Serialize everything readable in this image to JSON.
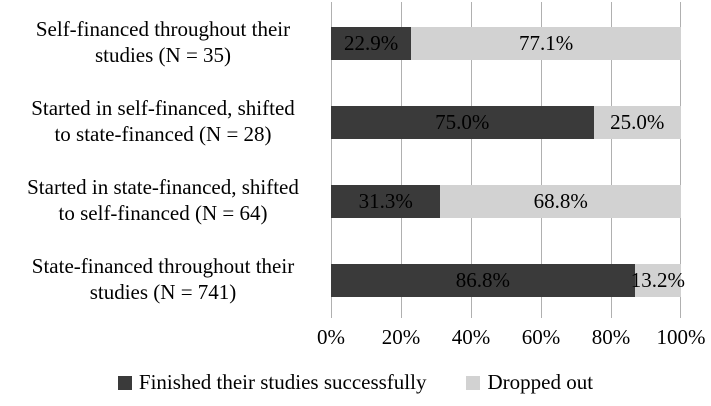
{
  "chart_data": {
    "type": "bar",
    "orientation": "horizontal",
    "stacked": true,
    "title": "",
    "categories": [
      {
        "line1": "Self-financed throughout their",
        "line2": "studies (N = 35)"
      },
      {
        "line1": "Started in self-financed, shifted",
        "line2": "to state-financed (N = 28)"
      },
      {
        "line1": "Started in state-financed, shifted",
        "line2": "to self-financed (N = 64)"
      },
      {
        "line1": "State-financed throughout their",
        "line2": "studies (N = 741)"
      }
    ],
    "series": [
      {
        "name": "Finished their studies successfully",
        "color": "#3a3a3a",
        "values": [
          22.9,
          75.0,
          31.3,
          86.8
        ],
        "value_labels": [
          "22.9%",
          "75.0%",
          "31.3%",
          "86.8%"
        ]
      },
      {
        "name": "Dropped out",
        "color": "#d2d2d2",
        "values": [
          77.1,
          25.0,
          68.8,
          13.2
        ],
        "value_labels": [
          "77.1%",
          "25.0%",
          "68.8%",
          "13.2%"
        ]
      }
    ],
    "x_axis": {
      "min": 0,
      "max": 100,
      "tick_values": [
        0,
        20,
        40,
        60,
        80,
        100
      ],
      "ticks": [
        "0%",
        "20%",
        "40%",
        "60%",
        "80%",
        "100%"
      ]
    },
    "grid": {
      "vertical": true,
      "color": "#b0b0b0"
    },
    "legend_position": "bottom",
    "label_color": "#000000",
    "background": "#ffffff"
  }
}
